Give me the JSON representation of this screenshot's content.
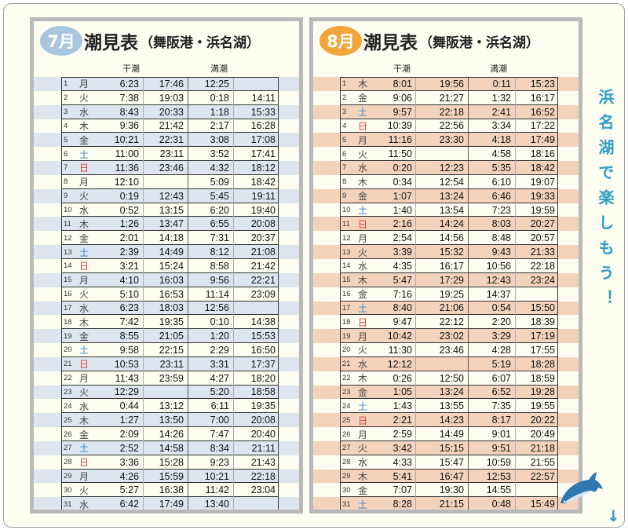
{
  "colors": {
    "july_badge": "#a8c6df",
    "august_badge": "#f3a53a",
    "july_stripe": "#dde6ee",
    "august_stripe": "#f4d3bc",
    "base": "#fdfdf2",
    "saturday": "#3a86c8",
    "sunday": "#e03a3a",
    "side_text": "#2f9cc4"
  },
  "headers": {
    "low": "干潮",
    "high": "満潮"
  },
  "side_text": "浜名湖で楽しもう！",
  "icons": [
    "dolphin-icon",
    "arrow-down-icon"
  ],
  "months": [
    {
      "badge": "7月",
      "title": "潮見表",
      "subtitle": "（舞阪港・浜名湖）",
      "rows": [
        [
          "1",
          "月",
          "6:23",
          "17:46",
          "12:25",
          ""
        ],
        [
          "2",
          "火",
          "7:38",
          "19:03",
          "0:18",
          "14:11"
        ],
        [
          "3",
          "水",
          "8:43",
          "20:33",
          "1:18",
          "15:33"
        ],
        [
          "4",
          "木",
          "9:36",
          "21:42",
          "2:17",
          "16:28"
        ],
        [
          "5",
          "金",
          "10:21",
          "22:31",
          "3:08",
          "17:08"
        ],
        [
          "6",
          "土",
          "11:00",
          "23:11",
          "3:52",
          "17:41"
        ],
        [
          "7",
          "日",
          "11:36",
          "23:46",
          "4:32",
          "18:12"
        ],
        [
          "8",
          "月",
          "12:10",
          "",
          "5:09",
          "18:42"
        ],
        [
          "9",
          "火",
          "0:19",
          "12:43",
          "5:45",
          "19:11"
        ],
        [
          "10",
          "水",
          "0:52",
          "13:15",
          "6:20",
          "19:40"
        ],
        [
          "11",
          "木",
          "1:26",
          "13:47",
          "6:55",
          "20:08"
        ],
        [
          "12",
          "金",
          "2:01",
          "14:18",
          "7:31",
          "20:37"
        ],
        [
          "13",
          "土",
          "2:39",
          "14:49",
          "8:12",
          "21:08"
        ],
        [
          "14",
          "日",
          "3:21",
          "15:24",
          "8:58",
          "21:42"
        ],
        [
          "15",
          "月",
          "4:10",
          "16:03",
          "9:56",
          "22:21"
        ],
        [
          "16",
          "火",
          "5:10",
          "16:53",
          "11:14",
          "23:09"
        ],
        [
          "17",
          "水",
          "6:23",
          "18:03",
          "12:56",
          ""
        ],
        [
          "18",
          "木",
          "7:42",
          "19:35",
          "0:10",
          "14:38"
        ],
        [
          "19",
          "金",
          "8:55",
          "21:05",
          "1:20",
          "15:53"
        ],
        [
          "20",
          "土",
          "9:58",
          "22:15",
          "2:29",
          "16:50"
        ],
        [
          "21",
          "日",
          "10:53",
          "23:11",
          "3:31",
          "17:37"
        ],
        [
          "22",
          "月",
          "11:43",
          "23:59",
          "4:27",
          "18:20"
        ],
        [
          "23",
          "火",
          "12:29",
          "",
          "5:20",
          "18:58"
        ],
        [
          "24",
          "水",
          "0:44",
          "13:12",
          "6:11",
          "19:35"
        ],
        [
          "25",
          "木",
          "1:27",
          "13:50",
          "7:00",
          "20:08"
        ],
        [
          "26",
          "金",
          "2:09",
          "14:26",
          "7:47",
          "20:40"
        ],
        [
          "27",
          "土",
          "2:52",
          "14:58",
          "8:34",
          "21:11"
        ],
        [
          "28",
          "日",
          "3:36",
          "15:28",
          "9:23",
          "21:43"
        ],
        [
          "29",
          "月",
          "4:26",
          "15:59",
          "10:21",
          "22:18"
        ],
        [
          "30",
          "火",
          "5:27",
          "16:38",
          "11:42",
          "23:04"
        ],
        [
          "31",
          "水",
          "6:42",
          "17:49",
          "13:40",
          ""
        ]
      ]
    },
    {
      "badge": "8月",
      "title": "潮見表",
      "subtitle": "（舞阪港・浜名湖）",
      "rows": [
        [
          "1",
          "木",
          "8:01",
          "19:56",
          "0:11",
          "15:23"
        ],
        [
          "2",
          "金",
          "9:06",
          "21:27",
          "1:32",
          "16:17"
        ],
        [
          "3",
          "土",
          "9:57",
          "22:18",
          "2:41",
          "16:52"
        ],
        [
          "4",
          "日",
          "10:39",
          "22:56",
          "3:34",
          "17:22"
        ],
        [
          "5",
          "月",
          "11:16",
          "23:30",
          "4:18",
          "17:49"
        ],
        [
          "6",
          "火",
          "11:50",
          "",
          "4:58",
          "18:16"
        ],
        [
          "7",
          "水",
          "0:20",
          "12:23",
          "5:35",
          "18:42"
        ],
        [
          "8",
          "木",
          "0:34",
          "12:54",
          "6:10",
          "19:07"
        ],
        [
          "9",
          "金",
          "1:07",
          "13:24",
          "6:46",
          "19:33"
        ],
        [
          "10",
          "土",
          "1:40",
          "13:54",
          "7:23",
          "19:59"
        ],
        [
          "11",
          "日",
          "2:16",
          "14:24",
          "8:03",
          "20:27"
        ],
        [
          "12",
          "月",
          "2:54",
          "14:56",
          "8:48",
          "20:57"
        ],
        [
          "13",
          "火",
          "3:39",
          "15:32",
          "9:43",
          "21:33"
        ],
        [
          "14",
          "水",
          "4:35",
          "16:17",
          "10:56",
          "22:18"
        ],
        [
          "15",
          "木",
          "5:47",
          "17:29",
          "12:43",
          "23:24"
        ],
        [
          "16",
          "金",
          "7:16",
          "19:25",
          "14:37",
          ""
        ],
        [
          "17",
          "土",
          "8:40",
          "21:06",
          "0:54",
          "15:50"
        ],
        [
          "18",
          "日",
          "9:47",
          "22:12",
          "2:20",
          "18:39"
        ],
        [
          "19",
          "月",
          "10:42",
          "23:02",
          "3:29",
          "17:19"
        ],
        [
          "20",
          "火",
          "11:30",
          "23:46",
          "4:28",
          "17:55"
        ],
        [
          "21",
          "水",
          "12:12",
          "",
          "5:19",
          "18:28"
        ],
        [
          "22",
          "木",
          "0:26",
          "12:50",
          "6:07",
          "18:59"
        ],
        [
          "23",
          "金",
          "1:05",
          "13:24",
          "6:52",
          "19:28"
        ],
        [
          "24",
          "土",
          "1:43",
          "13:55",
          "7:35",
          "19:55"
        ],
        [
          "25",
          "日",
          "2:21",
          "14:23",
          "8:17",
          "20:22"
        ],
        [
          "26",
          "月",
          "2:59",
          "14:49",
          "9:01",
          "20:49"
        ],
        [
          "27",
          "火",
          "3:42",
          "15:15",
          "9:51",
          "21:18"
        ],
        [
          "28",
          "水",
          "4:33",
          "15:47",
          "10:59",
          "21:55"
        ],
        [
          "29",
          "木",
          "5:41",
          "16:47",
          "12:53",
          "22:57"
        ],
        [
          "30",
          "金",
          "7:07",
          "19:30",
          "14:55",
          ""
        ],
        [
          "31",
          "土",
          "8:28",
          "21:15",
          "0:48",
          "15:49"
        ]
      ]
    }
  ]
}
